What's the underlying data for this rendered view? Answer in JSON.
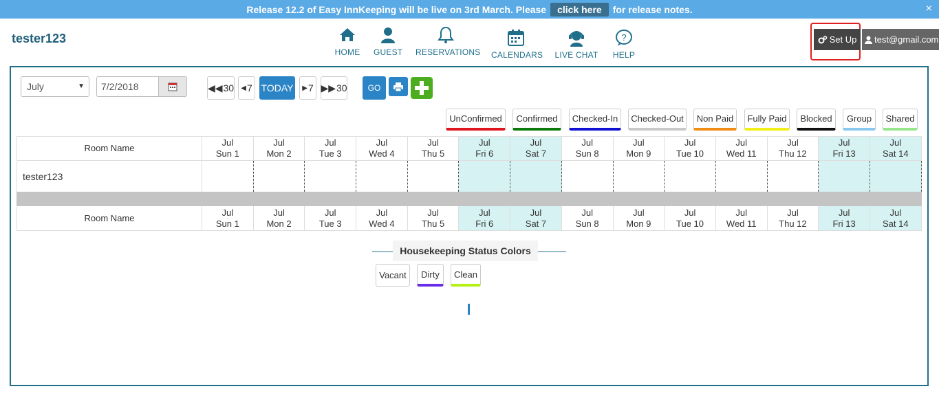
{
  "banner": {
    "text_before": "Release 12.2 of Easy InnKeeping will be live on 3rd March. Please",
    "link": "click here",
    "text_after": "for release notes.",
    "close": "×"
  },
  "brand": "tester123",
  "nav": [
    {
      "label": "HOME",
      "icon": "home-icon"
    },
    {
      "label": "GUEST",
      "icon": "user-icon"
    },
    {
      "label": "RESERVATIONS",
      "icon": "bell-icon"
    },
    {
      "label": "CALENDARS",
      "icon": "calendar-icon"
    },
    {
      "label": "LIVE CHAT",
      "icon": "chat-support-icon"
    },
    {
      "label": "HELP",
      "icon": "help-icon"
    }
  ],
  "setup_label": "Set Up",
  "user_label": "test@gmail.com",
  "controls": {
    "month": "July",
    "date": "7/2/2018",
    "back30": "30",
    "back7": "7",
    "today": "TODAY",
    "fwd7": "7",
    "fwd30": "30",
    "go": "GO"
  },
  "legend": [
    {
      "label": "UnConfirmed",
      "color": "#e0141e"
    },
    {
      "label": "Confirmed",
      "color": "#0a7a0a"
    },
    {
      "label": "Checked-In",
      "color": "#1010d0"
    },
    {
      "label": "Checked-Out",
      "color": "#c8c8c8"
    },
    {
      "label": "Non Paid",
      "color": "#f08c14"
    },
    {
      "label": "Fully Paid",
      "color": "#f0f014"
    },
    {
      "label": "Blocked",
      "color": "#111111"
    },
    {
      "label": "Group",
      "color": "#8ac8ee"
    },
    {
      "label": "Shared",
      "color": "#96e68c"
    }
  ],
  "grid": {
    "room_header": "Room Name",
    "days": [
      {
        "month": "Jul",
        "day": "Sun 1"
      },
      {
        "month": "Jul",
        "day": "Mon 2"
      },
      {
        "month": "Jul",
        "day": "Tue 3"
      },
      {
        "month": "Jul",
        "day": "Wed 4"
      },
      {
        "month": "Jul",
        "day": "Thu 5"
      },
      {
        "month": "Jul",
        "day": "Fri 6"
      },
      {
        "month": "Jul",
        "day": "Sat 7"
      },
      {
        "month": "Jul",
        "day": "Sun 8"
      },
      {
        "month": "Jul",
        "day": "Mon 9"
      },
      {
        "month": "Jul",
        "day": "Tue 10"
      },
      {
        "month": "Jul",
        "day": "Wed 11"
      },
      {
        "month": "Jul",
        "day": "Thu 12"
      },
      {
        "month": "Jul",
        "day": "Fri 13"
      },
      {
        "month": "Jul",
        "day": "Sat 14"
      }
    ],
    "rooms": [
      "tester123"
    ]
  },
  "housekeeping": {
    "title": "Housekeeping Status Colors",
    "items": [
      {
        "label": "Vacant",
        "color": "#ffffff"
      },
      {
        "label": "Dirty",
        "color": "#6a2ee6"
      },
      {
        "label": "Clean",
        "color": "#b4f014"
      }
    ]
  }
}
